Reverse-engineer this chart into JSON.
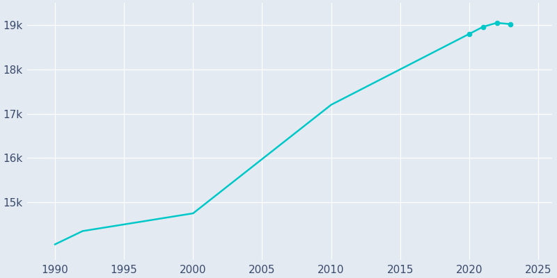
{
  "years": [
    1990,
    1992,
    2000,
    2010,
    2020,
    2021,
    2022,
    2023
  ],
  "population": [
    14050,
    14350,
    14750,
    17200,
    18800,
    18960,
    19050,
    19020
  ],
  "line_color": "#00C8C8",
  "marker_years": [
    2020,
    2021,
    2022,
    2023
  ],
  "bg_color": "#E3EAF2",
  "figure_bg": "#E3EAF2",
  "grid_color": "#FFFFFF",
  "tick_color": "#3A4A6B",
  "xlim": [
    1988,
    2026
  ],
  "ylim": [
    13700,
    19500
  ],
  "xticks": [
    1990,
    1995,
    2000,
    2005,
    2010,
    2015,
    2020,
    2025
  ],
  "ytick_values": [
    15000,
    16000,
    17000,
    18000,
    19000
  ],
  "ytick_labels": [
    "15k",
    "16k",
    "17k",
    "18k",
    "19k"
  ],
  "line_width": 1.8,
  "marker_size": 4.5
}
